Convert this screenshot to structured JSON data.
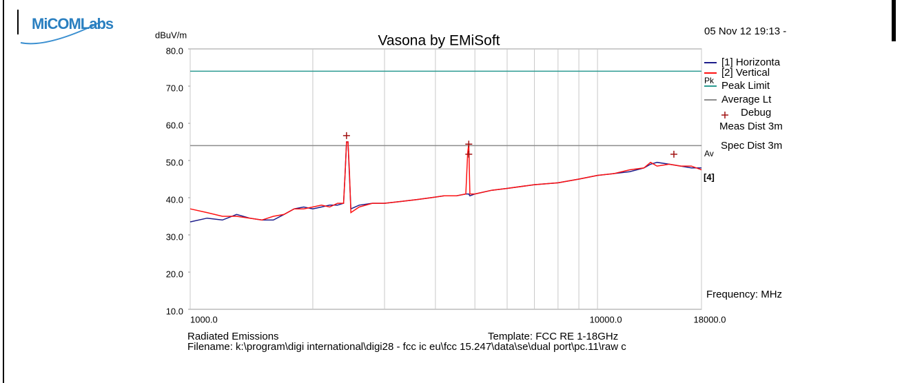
{
  "logo": "MiCOMLabs",
  "chart_data": {
    "type": "line",
    "title": "Vasona by EMiSoft",
    "date": "05 Nov 12 19:13 -",
    "y_label": "dBuV/m",
    "x_label": "Frequency: MHz",
    "meas_dist": "Meas Dist 3m",
    "spec_dist": "Spec Dist 3m",
    "limit_tags": [
      "Pk",
      "Av"
    ],
    "trace_tag": "[4]",
    "xscale": "log",
    "xlim": [
      1000,
      18000
    ],
    "ylim": [
      10,
      80
    ],
    "xticks": [
      {
        "value": 1000,
        "label": "1000.0"
      },
      {
        "value": 10000,
        "label": "10000.0"
      },
      {
        "value": 18000,
        "label": "18000.0"
      }
    ],
    "x_minor_grid": [
      2000,
      3000,
      4000,
      5000,
      6000,
      7000,
      8000,
      9000
    ],
    "yticks": [
      {
        "value": 10,
        "label": "10.0"
      },
      {
        "value": 20,
        "label": "20.0"
      },
      {
        "value": 30,
        "label": "30.0"
      },
      {
        "value": 40,
        "label": "40.0"
      },
      {
        "value": 50,
        "label": "50.0"
      },
      {
        "value": 60,
        "label": "60.0"
      },
      {
        "value": 70,
        "label": "70.0"
      },
      {
        "value": 80,
        "label": "80.0"
      }
    ],
    "series": [
      {
        "name": "[1] Horizonta",
        "color": "#1c1c8a",
        "x": [
          1000,
          1100,
          1200,
          1300,
          1400,
          1500,
          1600,
          1700,
          1800,
          1900,
          2000,
          2100,
          2200,
          2300,
          2380,
          2400,
          2420,
          2440,
          2460,
          2480,
          2600,
          2800,
          3000,
          3300,
          3600,
          3900,
          4200,
          4500,
          4750,
          4800,
          4830,
          4860,
          5000,
          5500,
          6000,
          7000,
          8000,
          9000,
          10000,
          11000,
          12000,
          13000,
          13500,
          14000,
          15000,
          16000,
          17000,
          18000
        ],
        "values": [
          33.5,
          34.5,
          34,
          35.5,
          34.5,
          34,
          34,
          35.5,
          37,
          37.5,
          37,
          37.5,
          38,
          38,
          38.5,
          46,
          55,
          55,
          46,
          37,
          38,
          38.5,
          38.5,
          39,
          39.5,
          40,
          40.5,
          40.5,
          41,
          41,
          41,
          40.5,
          41,
          42,
          42.5,
          43.5,
          44,
          45,
          46,
          46.5,
          47,
          48,
          49,
          49.5,
          49,
          48.5,
          48,
          48
        ]
      },
      {
        "name": "[2] Vertical",
        "color": "#ff1010",
        "x": [
          1000,
          1100,
          1200,
          1300,
          1400,
          1500,
          1600,
          1700,
          1800,
          1900,
          2000,
          2100,
          2200,
          2300,
          2380,
          2400,
          2420,
          2440,
          2460,
          2480,
          2600,
          2800,
          3000,
          3300,
          3600,
          3900,
          4200,
          4500,
          4750,
          4800,
          4830,
          4860,
          5000,
          5500,
          6000,
          7000,
          8000,
          9000,
          10000,
          11000,
          12000,
          13000,
          13500,
          14000,
          15000,
          16000,
          17000,
          18000
        ],
        "values": [
          37,
          36,
          35,
          35,
          34.5,
          34,
          35,
          35.5,
          37,
          37,
          37.5,
          38,
          37.5,
          38.5,
          38.5,
          46,
          55,
          55,
          47,
          36,
          37.5,
          38.5,
          38.5,
          39,
          39.5,
          40,
          40.5,
          40.5,
          41,
          52,
          54.5,
          41,
          41,
          42,
          42.5,
          43.5,
          44,
          45,
          46,
          46.5,
          47.5,
          48,
          49.5,
          48.5,
          49,
          48.5,
          48.5,
          47.5
        ]
      }
    ],
    "limits": [
      {
        "name": "Peak Limit",
        "color": "#2a9a90",
        "value": 74
      },
      {
        "name": "Average Lt",
        "color": "#8c8c8c",
        "value": 54
      }
    ],
    "markers": {
      "name": "Debug",
      "color": "#a01010",
      "x": [
        2420,
        4830,
        4830,
        15400
      ],
      "values": [
        56.7,
        54.4,
        51.7,
        51.7
      ]
    },
    "footer": {
      "test": "Radiated Emissions",
      "template": "Template: FCC RE 1-18GHz",
      "filename": "Filename: k:\\program\\digi international\\digi28 - fcc ic eu\\fcc 15.247\\data\\se\\dual port\\pc.11\\raw c"
    }
  }
}
